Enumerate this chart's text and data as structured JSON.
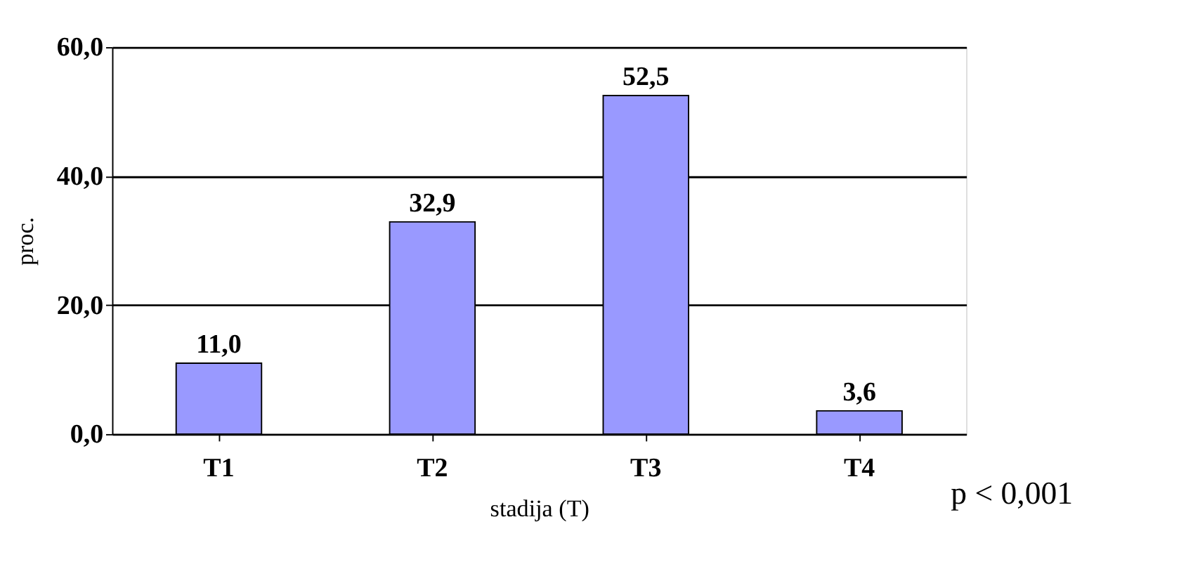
{
  "chart_data": {
    "type": "bar",
    "categories": [
      "T1",
      "T2",
      "T3",
      "T4"
    ],
    "values": [
      11.0,
      32.9,
      52.5,
      3.6
    ],
    "value_labels": [
      "11,0",
      "32,9",
      "52,5",
      "3,6"
    ],
    "color": "#9999ff",
    "xlabel": "stadija (T)",
    "ylabel": "proc.",
    "ylim": [
      0,
      60
    ],
    "yticks": [
      {
        "value": 0,
        "label": "0,0"
      },
      {
        "value": 20,
        "label": "20,0"
      },
      {
        "value": 40,
        "label": "40,0"
      },
      {
        "value": 60,
        "label": "60,0"
      }
    ],
    "grid": "y",
    "annotations": [
      "p < 0,001"
    ]
  }
}
